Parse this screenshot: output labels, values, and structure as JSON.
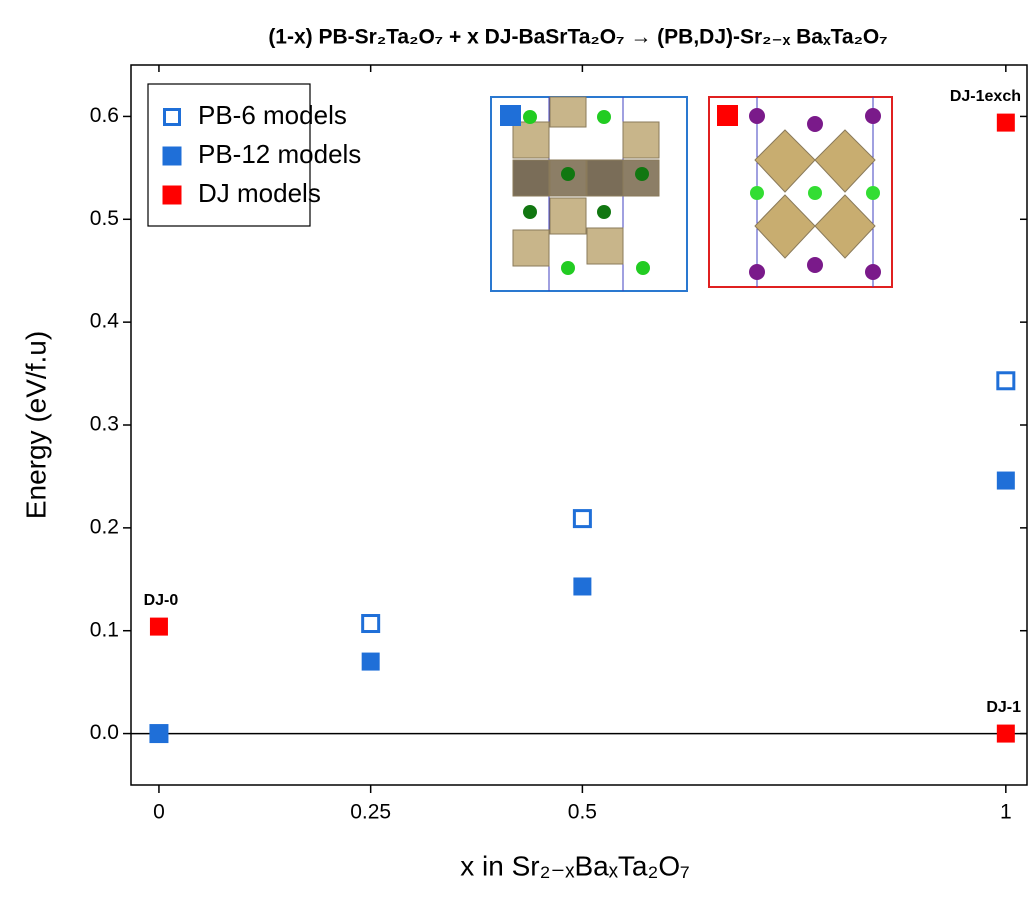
{
  "chart_data": {
    "type": "scatter",
    "title": "(1-x) PB-Sr₂Ta₂O₇ + x DJ-BaSrTa₂O₇ → (PB,DJ)-Sr₂₋ₓ BaₓTa₂O₇",
    "x_label": "x in Sr₂₋ₓBaₓTa₂O₇",
    "y_label": "Energy (eV/f.u)",
    "xlim": [
      -0.033,
      1.025
    ],
    "xticks": [
      0,
      0.25,
      0.5,
      1
    ],
    "ylim": [
      -0.05,
      0.65
    ],
    "yticks": [
      {
        "value": 0,
        "label": "0.0"
      },
      0.1,
      0.2,
      0.3,
      0.4,
      0.5,
      0.6
    ],
    "legend": "upper left",
    "series": [
      {
        "name": "PB-6 models",
        "color": "#1f6fd8",
        "marker": "open-square",
        "x": [
          0,
          0.25,
          0.5,
          1
        ],
        "values": [
          0,
          0.107,
          0.209,
          0.343
        ]
      },
      {
        "name": "PB-12 models",
        "color": "#1f6fd8",
        "marker": "square",
        "x": [
          0,
          0.25,
          0.5,
          1
        ],
        "values": [
          0,
          0.07,
          0.143,
          0.246
        ]
      },
      {
        "name": "DJ models",
        "color": "#ff0000",
        "marker": "square",
        "x": [
          0,
          1,
          1
        ],
        "values": [
          0.104,
          0.594,
          0
        ],
        "labels": [
          "DJ-0",
          "DJ-1exch",
          "DJ-1"
        ]
      }
    ]
  }
}
